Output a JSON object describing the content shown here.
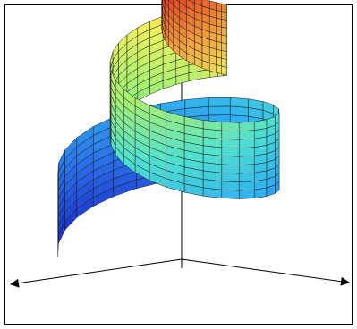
{
  "figure": {
    "type": "3d-surface",
    "description_free": true,
    "axes": {
      "count": 3,
      "arrowheads": [
        "top",
        "left",
        "right"
      ],
      "color": "#000000"
    },
    "surface": {
      "shape": "helical-ribbon",
      "turns": 2.1,
      "height_start": 0.0,
      "height_end": 1.0,
      "colormap": [
        "#1a2fc8",
        "#2a6de8",
        "#2fb0f0",
        "#4fe0d0",
        "#a8f070",
        "#f0f060",
        "#f0a040",
        "#e04020"
      ],
      "grid_color": "#1a1a1a"
    }
  }
}
